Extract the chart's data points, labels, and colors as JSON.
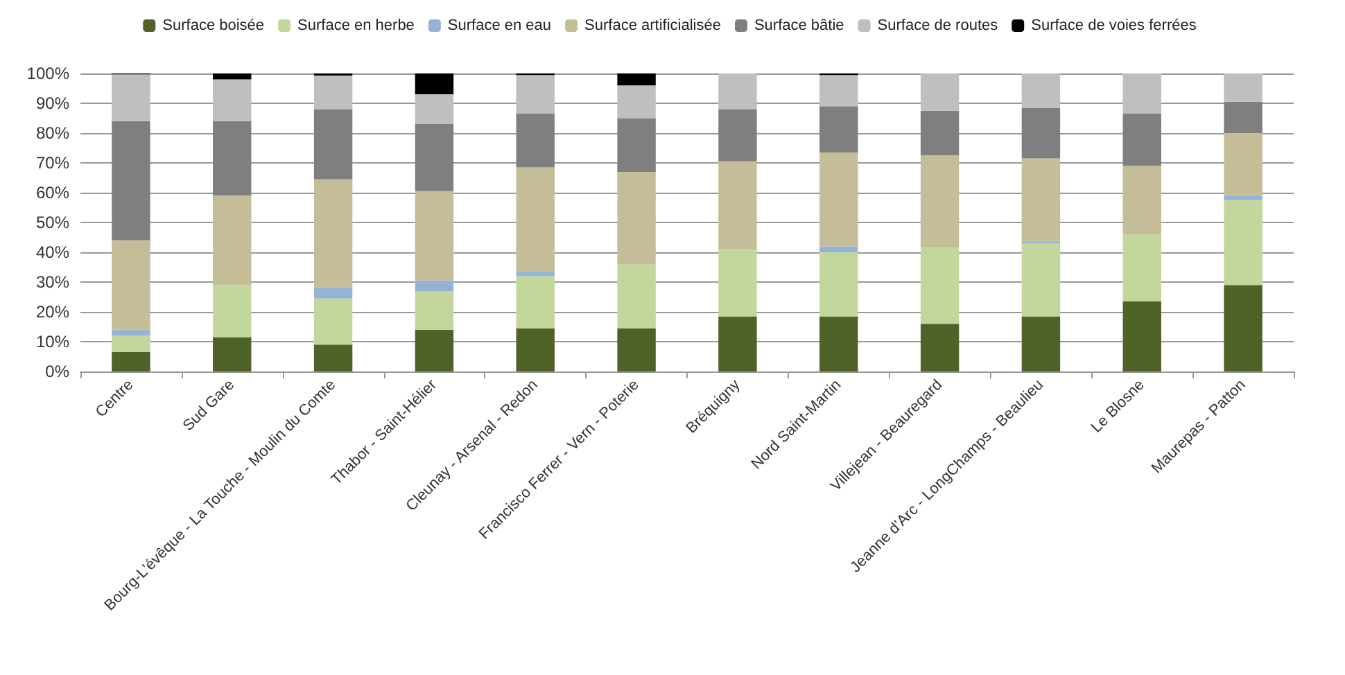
{
  "chart_data": {
    "type": "bar",
    "stacked": true,
    "grid": "y",
    "legend": "top",
    "categories": [
      "Centre",
      "Sud Gare",
      "Bourg-L'évêque - La Touche - Moulin du Comte",
      "Thabor - Saint-Hélier",
      "Cleunay - Arsenal - Redon",
      "Francisco Ferrer - Vern - Poterie",
      "Bréquigny",
      "Nord Saint-Martin",
      "Villejean - Beauregard",
      "Jeanne d'Arc - LongChamps - Beaulieu",
      "Le Blosne",
      "Maurepas - Patton"
    ],
    "ylim": [
      0,
      100
    ],
    "yticks": [
      {
        "value": 0,
        "label": "0%"
      },
      {
        "value": 10,
        "label": "10%"
      },
      {
        "value": 20,
        "label": "20%"
      },
      {
        "value": 30,
        "label": "30%"
      },
      {
        "value": 40,
        "label": "40%"
      },
      {
        "value": 50,
        "label": "50%"
      },
      {
        "value": 60,
        "label": "60%"
      },
      {
        "value": 70,
        "label": "70%"
      },
      {
        "value": 80,
        "label": "80%"
      },
      {
        "value": 90,
        "label": "90%"
      },
      {
        "value": 100,
        "label": "100%"
      }
    ],
    "series": [
      {
        "name": "Surface boisée",
        "color": "#4f6228",
        "values": [
          6.5,
          11.5,
          9,
          14,
          14.5,
          14.5,
          18.5,
          18.5,
          16,
          18.5,
          23.5,
          29
        ]
      },
      {
        "name": "Surface en herbe",
        "color": "#c3d69b",
        "values": [
          5.5,
          17.5,
          15.5,
          13,
          17.5,
          21.5,
          22.5,
          21.5,
          25.5,
          24.5,
          22.5,
          28.5
        ]
      },
      {
        "name": "Surface en eau",
        "color": "#95b3d7",
        "values": [
          2,
          0,
          3.5,
          3.5,
          1.5,
          0,
          0,
          2,
          0,
          0.5,
          0,
          1.5
        ]
      },
      {
        "name": "Surface artificialisée",
        "color": "#c4bd97",
        "values": [
          30,
          30,
          36.5,
          30,
          35,
          31,
          29.5,
          31.5,
          31,
          28,
          23,
          21
        ]
      },
      {
        "name": "Surface bâtie",
        "color": "#7f7f7f",
        "values": [
          40,
          25,
          23.5,
          22.5,
          18,
          18,
          17.5,
          15.5,
          15,
          17,
          17.5,
          10.5
        ]
      },
      {
        "name": "Surface de routes",
        "color": "#bfbfbf",
        "values": [
          15.7,
          14,
          11.3,
          10,
          13,
          11,
          12,
          10.5,
          12.5,
          11.5,
          13.5,
          9.5
        ]
      },
      {
        "name": "Surface de voies ferrées",
        "color": "#000000",
        "values": [
          0.3,
          2,
          0.7,
          7,
          0.5,
          4,
          0,
          0.5,
          0,
          0,
          0,
          0
        ]
      }
    ]
  }
}
